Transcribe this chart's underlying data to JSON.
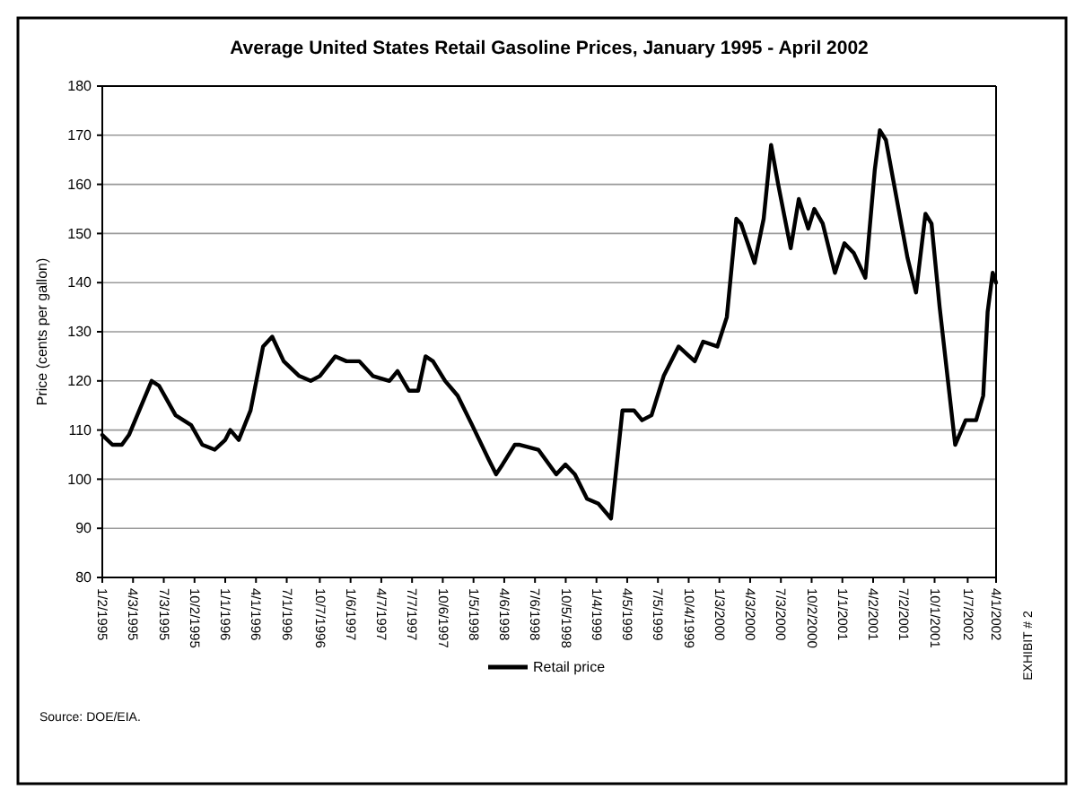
{
  "chart_data": {
    "type": "line",
    "title": "Average United States Retail Gasoline Prices,  January 1995 - April 2002",
    "ylabel": "Price (cents per gallon)",
    "x": [
      "1995-01-02",
      "1995-02-01",
      "1995-03-01",
      "1995-03-22",
      "1995-05-28",
      "1995-06-19",
      "1995-08-07",
      "1995-09-22",
      "1995-10-25",
      "1995-12-01",
      "1996-01-01",
      "1996-01-16",
      "1996-02-10",
      "1996-03-16",
      "1996-04-22",
      "1996-05-19",
      "1996-06-22",
      "1996-08-07",
      "1996-09-10",
      "1996-10-07",
      "1996-11-22",
      "1996-12-25",
      "1997-02-01",
      "1997-03-13",
      "1997-05-01",
      "1997-05-25",
      "1997-06-28",
      "1997-07-25",
      "1997-08-16",
      "1997-09-07",
      "1997-10-13",
      "1997-11-19",
      "1998-01-01",
      "1998-02-19",
      "1998-03-13",
      "1998-04-01",
      "1998-05-07",
      "1998-05-22",
      "1998-07-16",
      "1998-09-07",
      "1998-10-04",
      "1998-11-01",
      "1998-12-07",
      "1999-01-10",
      "1999-02-16",
      "1999-03-22",
      "1999-04-25",
      "1999-05-19",
      "1999-06-16",
      "1999-07-22",
      "1999-09-04",
      "1999-10-22",
      "1999-11-16",
      "1999-12-28",
      "2000-01-25",
      "2000-02-22",
      "2000-03-07",
      "2000-04-16",
      "2000-05-13",
      "2000-06-04",
      "2000-06-25",
      "2000-08-01",
      "2000-08-25",
      "2000-09-22",
      "2000-10-10",
      "2000-11-04",
      "2000-12-10",
      "2001-01-07",
      "2001-02-04",
      "2001-03-10",
      "2001-04-07",
      "2001-04-22",
      "2001-05-10",
      "2001-07-13",
      "2001-08-07",
      "2001-09-04",
      "2001-09-22",
      "2001-10-16",
      "2001-12-01",
      "2002-01-01",
      "2002-02-01",
      "2002-02-22",
      "2002-03-07",
      "2002-03-22",
      "2002-04-01"
    ],
    "series": [
      {
        "name": "Retail price",
        "color": "#000000",
        "values": [
          109,
          107,
          107,
          109,
          120,
          119,
          113,
          111,
          107,
          106,
          108,
          110,
          108,
          114,
          127,
          129,
          124,
          121,
          120,
          121,
          125,
          124,
          124,
          121,
          120,
          122,
          118,
          118,
          125,
          124,
          120,
          117,
          111,
          104,
          101,
          103,
          107,
          107,
          106,
          101,
          103,
          101,
          96,
          95,
          92,
          114,
          114,
          112,
          113,
          121,
          127,
          124,
          128,
          127,
          133,
          153,
          152,
          144,
          153,
          168,
          160,
          147,
          157,
          151,
          155,
          152,
          142,
          148,
          146,
          141,
          163,
          171,
          169,
          145,
          138,
          154,
          152,
          135,
          107,
          112,
          112,
          117,
          134,
          142,
          140
        ]
      }
    ],
    "xlim": [
      "1995-01-02",
      "2002-04-01"
    ],
    "xticks": [
      {
        "value": "1995-01-02",
        "label": "1/2/1995"
      },
      {
        "value": "1995-04-03",
        "label": "4/3/1995"
      },
      {
        "value": "1995-07-03",
        "label": "7/3/1995"
      },
      {
        "value": "1995-10-02",
        "label": "10/2/1995"
      },
      {
        "value": "1996-01-01",
        "label": "1/1/1996"
      },
      {
        "value": "1996-04-01",
        "label": "4/1/1996"
      },
      {
        "value": "1996-07-01",
        "label": "7/1/1996"
      },
      {
        "value": "1996-10-07",
        "label": "10/7/1996"
      },
      {
        "value": "1997-01-06",
        "label": "1/6/1997"
      },
      {
        "value": "1997-04-07",
        "label": "4/7/1997"
      },
      {
        "value": "1997-07-07",
        "label": "7/7/1997"
      },
      {
        "value": "1997-10-06",
        "label": "10/6/1997"
      },
      {
        "value": "1998-01-05",
        "label": "1/5/1998"
      },
      {
        "value": "1998-04-06",
        "label": "4/6/1998"
      },
      {
        "value": "1998-07-06",
        "label": "7/6/1998"
      },
      {
        "value": "1998-10-05",
        "label": "10/5/1998"
      },
      {
        "value": "1999-01-04",
        "label": "1/4/1999"
      },
      {
        "value": "1999-04-05",
        "label": "4/5/1999"
      },
      {
        "value": "1999-07-05",
        "label": "7/5/1999"
      },
      {
        "value": "1999-10-04",
        "label": "10/4/1999"
      },
      {
        "value": "2000-01-03",
        "label": "1/3/2000"
      },
      {
        "value": "2000-04-03",
        "label": "4/3/2000"
      },
      {
        "value": "2000-07-03",
        "label": "7/3/2000"
      },
      {
        "value": "2000-10-02",
        "label": "10/2/2000"
      },
      {
        "value": "2001-01-01",
        "label": "1/1/2001"
      },
      {
        "value": "2001-04-02",
        "label": "4/2/2001"
      },
      {
        "value": "2001-07-02",
        "label": "7/2/2001"
      },
      {
        "value": "2001-10-01",
        "label": "10/1/2001"
      },
      {
        "value": "2002-01-07",
        "label": "1/7/2002"
      },
      {
        "value": "2002-04-01",
        "label": "4/1/2002"
      }
    ],
    "ylim": [
      80,
      180
    ],
    "yticks": [
      80,
      90,
      100,
      110,
      120,
      130,
      140,
      150,
      160,
      170,
      180
    ],
    "grid": "y",
    "legend": "bottom",
    "line_style": "solid",
    "marker": "none",
    "annotations": [
      "Source: DOE/EIA.",
      "EXHIBIT # 2"
    ]
  }
}
